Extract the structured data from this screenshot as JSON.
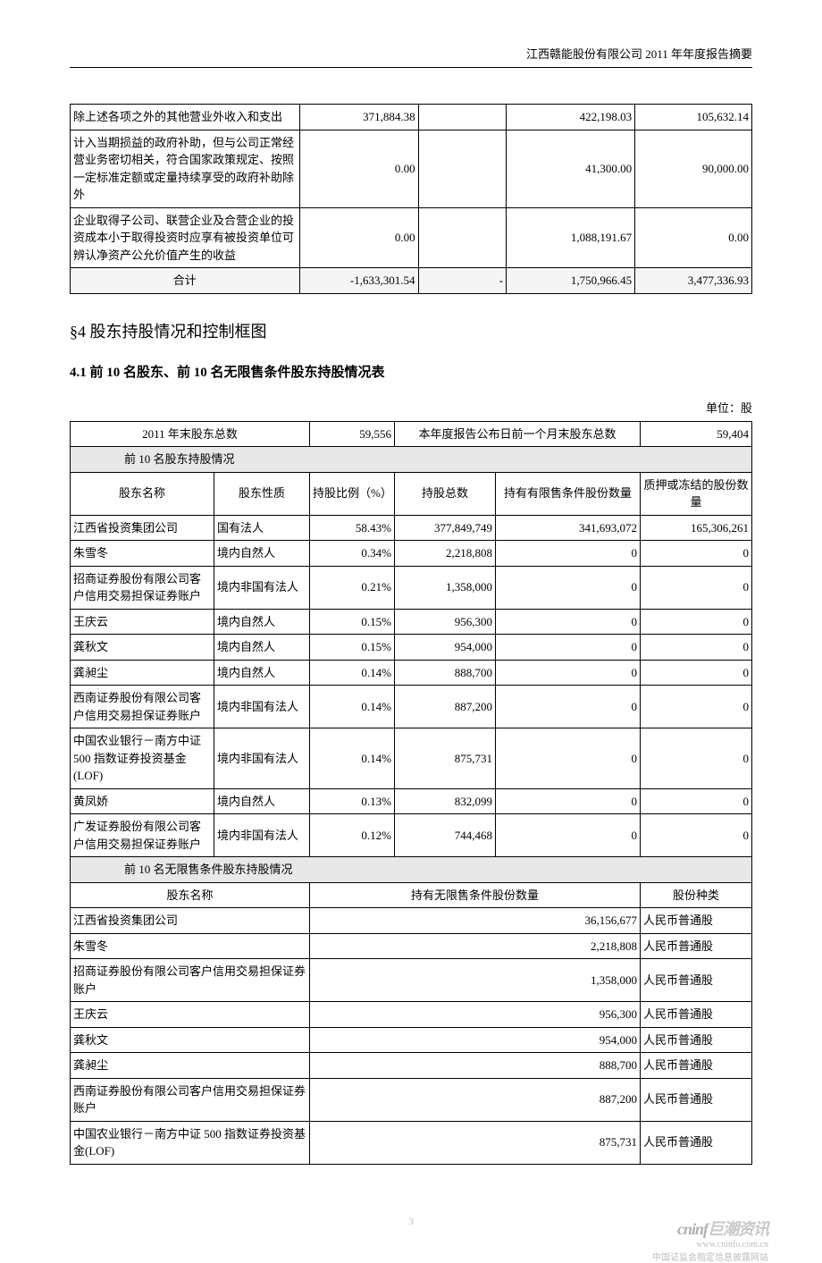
{
  "header": "江西赣能股份有限公司 2011 年年度报告摘要",
  "table1": {
    "rows": [
      {
        "c1": "除上述各项之外的其他营业外收入和支出",
        "c2": "371,884.38",
        "c3": "",
        "c4": "422,198.03",
        "c5": "105,632.14"
      },
      {
        "c1": "计入当期损益的政府补助，但与公司正常经营业务密切相关，符合国家政策规定、按照一定标准定额或定量持续享受的政府补助除外",
        "c2": "0.00",
        "c3": "",
        "c4": "41,300.00",
        "c5": "90,000.00"
      },
      {
        "c1": "企业取得子公司、联营企业及合营企业的投资成本小于取得投资时应享有被投资单位可辨认净资产公允价值产生的收益",
        "c2": "0.00",
        "c3": "",
        "c4": "1,088,191.67",
        "c5": "0.00"
      }
    ],
    "total": {
      "label": "合计",
      "c2": "-1,633,301.54",
      "c3": "-",
      "c4": "1,750,966.45",
      "c5": "3,477,336.93"
    }
  },
  "section4": "§4  股东持股情况和控制框图",
  "section41": "4.1 前 10 名股东、前 10 名无限售条件股东持股情况表",
  "unit": "单位：股",
  "table2": {
    "hdr": {
      "a": "2011 年末股东总数",
      "av": "59,556",
      "b": "本年度报告公布日前一个月末股东总数",
      "bv": "59,404"
    },
    "sub1": "前 10 名股东持股情况",
    "cols1": {
      "c1": "股东名称",
      "c2": "股东性质",
      "c3": "持股比例（%）",
      "c4": "持股总数",
      "c5": "持有有限售条件股份数量",
      "c6": "质押或冻结的股份数量"
    },
    "rows1": [
      {
        "c1": "江西省投资集团公司",
        "c2": "国有法人",
        "c3": "58.43%",
        "c4": "377,849,749",
        "c5": "341,693,072",
        "c6": "165,306,261"
      },
      {
        "c1": "朱雪冬",
        "c2": "境内自然人",
        "c3": "0.34%",
        "c4": "2,218,808",
        "c5": "0",
        "c6": "0"
      },
      {
        "c1": "招商证券股份有限公司客户信用交易担保证券账户",
        "c2": "境内非国有法人",
        "c3": "0.21%",
        "c4": "1,358,000",
        "c5": "0",
        "c6": "0"
      },
      {
        "c1": "王庆云",
        "c2": "境内自然人",
        "c3": "0.15%",
        "c4": "956,300",
        "c5": "0",
        "c6": "0"
      },
      {
        "c1": "龚秋文",
        "c2": "境内自然人",
        "c3": "0.15%",
        "c4": "954,000",
        "c5": "0",
        "c6": "0"
      },
      {
        "c1": "龚昶尘",
        "c2": "境内自然人",
        "c3": "0.14%",
        "c4": "888,700",
        "c5": "0",
        "c6": "0"
      },
      {
        "c1": "西南证券股份有限公司客户信用交易担保证券账户",
        "c2": "境内非国有法人",
        "c3": "0.14%",
        "c4": "887,200",
        "c5": "0",
        "c6": "0"
      },
      {
        "c1": "中国农业银行－南方中证 500 指数证券投资基金(LOF)",
        "c2": "境内非国有法人",
        "c3": "0.14%",
        "c4": "875,731",
        "c5": "0",
        "c6": "0"
      },
      {
        "c1": "黄凤娇",
        "c2": "境内自然人",
        "c3": "0.13%",
        "c4": "832,099",
        "c5": "0",
        "c6": "0"
      },
      {
        "c1": "广发证券股份有限公司客户信用交易担保证券账户",
        "c2": "境内非国有法人",
        "c3": "0.12%",
        "c4": "744,468",
        "c5": "0",
        "c6": "0"
      }
    ],
    "sub2": "前 10 名无限售条件股东持股情况",
    "cols2": {
      "c1": "股东名称",
      "c2": "持有无限售条件股份数量",
      "c3": "股份种类"
    },
    "rows2": [
      {
        "c1": "江西省投资集团公司",
        "c2": "36,156,677",
        "c3": "人民币普通股"
      },
      {
        "c1": "朱雪冬",
        "c2": "2,218,808",
        "c3": "人民币普通股"
      },
      {
        "c1": "招商证券股份有限公司客户信用交易担保证券账户",
        "c2": "1,358,000",
        "c3": "人民币普通股"
      },
      {
        "c1": "王庆云",
        "c2": "956,300",
        "c3": "人民币普通股"
      },
      {
        "c1": "龚秋文",
        "c2": "954,000",
        "c3": "人民币普通股"
      },
      {
        "c1": "龚昶尘",
        "c2": "888,700",
        "c3": "人民币普通股"
      },
      {
        "c1": "西南证券股份有限公司客户信用交易担保证券账户",
        "c2": "887,200",
        "c3": "人民币普通股"
      },
      {
        "c1": "中国农业银行－南方中证 500 指数证券投资基金(LOF)",
        "c2": "875,731",
        "c3": "人民币普通股"
      }
    ]
  },
  "page_num": "3",
  "logo": "cninf",
  "logo_site": "www.cninfo.com.cn",
  "logo_sub": "中国证监会指定信息披露网站"
}
